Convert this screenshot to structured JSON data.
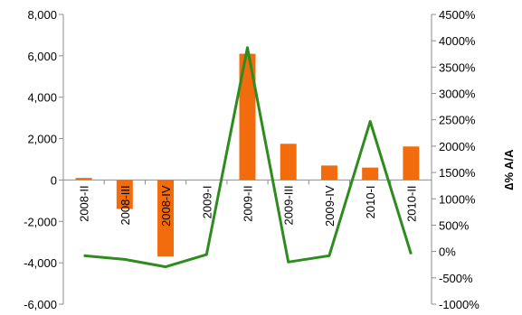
{
  "chart_data": {
    "type": "bar",
    "categories": [
      "2008-II",
      "2008-III",
      "2008-IV",
      "2009-I",
      "2009-II",
      "2009-III",
      "2009-IV",
      "2010-I",
      "2010-II"
    ],
    "series": [
      {
        "type": "bar",
        "axis": "left",
        "color": "#f26c0d",
        "values": [
          100,
          -1400,
          -3700,
          0,
          6100,
          1750,
          700,
          600,
          1620
        ]
      },
      {
        "type": "line",
        "axis": "right",
        "color": "#2e8b1e",
        "values": [
          -80,
          -150,
          -290,
          -60,
          3870,
          -200,
          -80,
          2470,
          -50
        ]
      }
    ],
    "ylim": [
      -6000,
      8000
    ],
    "y2lim": [
      -1000,
      4500
    ],
    "y_ticks": [
      "8,000",
      "6,000",
      "4,000",
      "2,000",
      "0",
      "-2,000",
      "-4,000",
      "-6,000"
    ],
    "y_tick_values": [
      8000,
      6000,
      4000,
      2000,
      0,
      -2000,
      -4000,
      -6000
    ],
    "y2_ticks": [
      "4500%",
      "4000%",
      "3500%",
      "3000%",
      "2500%",
      "2000%",
      "1500%",
      "1000%",
      "500%",
      "0%",
      "-500%",
      "-1000%"
    ],
    "y2_tick_values": [
      4500,
      4000,
      3500,
      3000,
      2500,
      2000,
      1500,
      1000,
      500,
      0,
      -500,
      -1000
    ],
    "y2label": "∆% A/A",
    "xlabel": "",
    "ylabel": "",
    "title": "",
    "grid": false
  }
}
